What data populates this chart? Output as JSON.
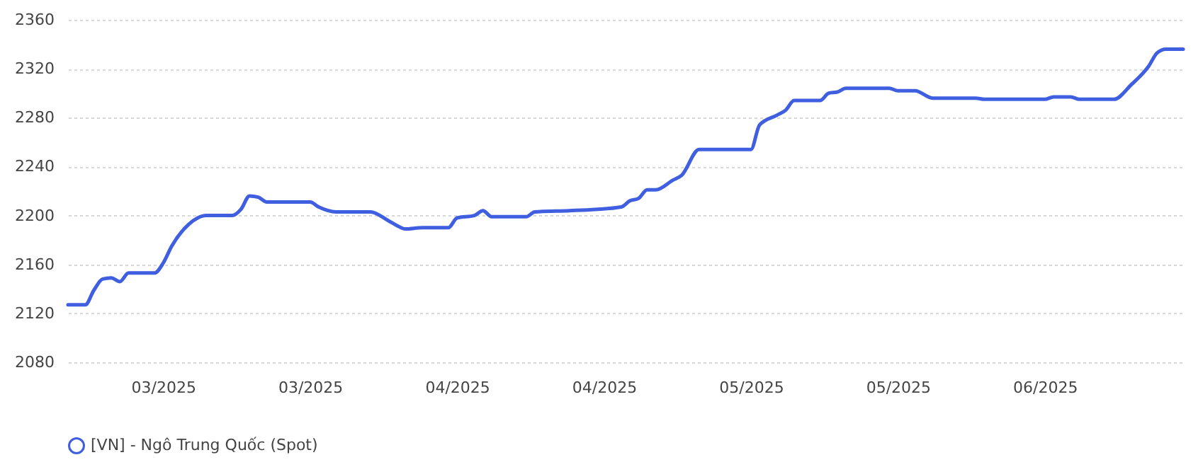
{
  "chart_data": {
    "type": "line",
    "x": [
      "2025-02-18",
      "2025-02-20",
      "2025-02-21",
      "2025-02-22",
      "2025-02-23",
      "2025-02-24",
      "2025-02-25",
      "2025-02-28",
      "2025-03-01",
      "2025-03-02",
      "2025-03-04",
      "2025-03-05",
      "2025-03-06",
      "2025-03-09",
      "2025-03-10",
      "2025-03-11",
      "2025-03-12",
      "2025-03-13",
      "2025-03-18",
      "2025-03-19",
      "2025-03-21",
      "2025-03-25",
      "2025-03-27",
      "2025-03-28",
      "2025-03-29",
      "2025-03-31",
      "2025-04-03",
      "2025-04-04",
      "2025-04-06",
      "2025-04-07",
      "2025-04-08",
      "2025-04-12",
      "2025-04-13",
      "2025-04-17",
      "2025-04-20",
      "2025-04-23",
      "2025-04-24",
      "2025-04-25",
      "2025-04-26",
      "2025-04-27",
      "2025-04-29",
      "2025-04-30",
      "2025-05-02",
      "2025-05-08",
      "2025-05-09",
      "2025-05-11",
      "2025-05-12",
      "2025-05-13",
      "2025-05-16",
      "2025-05-17",
      "2025-05-18",
      "2025-05-19",
      "2025-05-24",
      "2025-05-25",
      "2025-05-27",
      "2025-05-29",
      "2025-06-03",
      "2025-06-04",
      "2025-06-11",
      "2025-06-12",
      "2025-06-14",
      "2025-06-15",
      "2025-06-19",
      "2025-06-21",
      "2025-06-23",
      "2025-06-24",
      "2025-06-25",
      "2025-06-27"
    ],
    "series": [
      {
        "name": "[VN] - Ngô Trung Quốc (Spot)",
        "color": "#3f5fe0",
        "values": [
          2127,
          2127,
          2139,
          2148,
          2149,
          2146,
          2153,
          2153,
          2161,
          2175,
          2193,
          2198,
          2200,
          2200,
          2205,
          2216,
          2215,
          2211,
          2211,
          2207,
          2203,
          2203,
          2196,
          2192,
          2189,
          2190,
          2190,
          2198,
          2200,
          2204,
          2199,
          2199,
          2203,
          2204,
          2205,
          2207,
          2212,
          2214,
          2221,
          2221,
          2229,
          2233,
          2254,
          2254,
          2274,
          2282,
          2286,
          2294,
          2294,
          2300,
          2301,
          2304,
          2304,
          2302,
          2302,
          2296,
          2296,
          2295,
          2295,
          2297,
          2297,
          2295,
          2295,
          2307,
          2322,
          2333,
          2336,
          2336
        ]
      }
    ],
    "xlim": [
      "2025-02-18",
      "2025-06-27"
    ],
    "xticks": [
      {
        "value": "2025-03-01",
        "label": "03/2025"
      },
      {
        "value": "2025-03-18",
        "label": "03/2025"
      },
      {
        "value": "2025-04-04",
        "label": "04/2025"
      },
      {
        "value": "2025-04-21",
        "label": "04/2025"
      },
      {
        "value": "2025-05-08",
        "label": "05/2025"
      },
      {
        "value": "2025-05-25",
        "label": "05/2025"
      },
      {
        "value": "2025-06-11",
        "label": "06/2025"
      }
    ],
    "ylim": [
      2080,
      2360
    ],
    "yticks": [
      2080,
      2120,
      2160,
      2200,
      2240,
      2280,
      2320,
      2360
    ],
    "grid": "y",
    "legend": "bottom",
    "marker": "none",
    "line_style": "solid"
  }
}
